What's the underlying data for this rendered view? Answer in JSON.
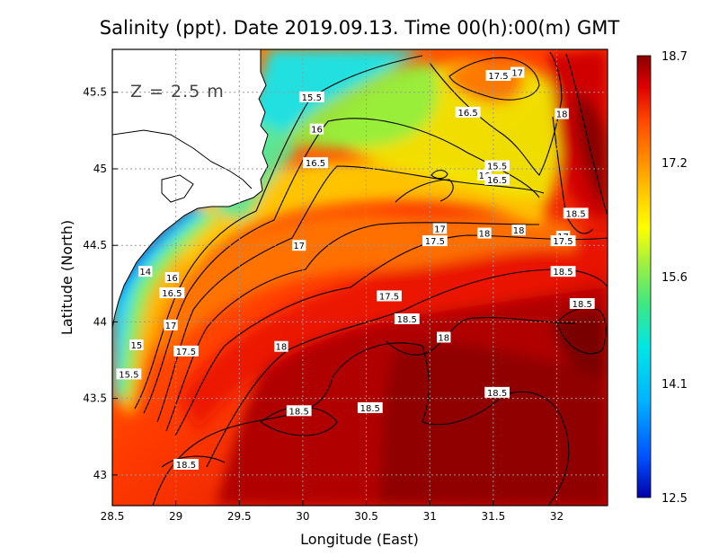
{
  "figure": {
    "title": "Salinity (ppt). Date 2019.09.13. Time 00(h):00(m) GMT",
    "depth_annotation": "Z = 2.5 m"
  },
  "chart_data": {
    "type": "heatmap",
    "variable": "Salinity (ppt)",
    "xlabel": "Longitude (East)",
    "ylabel": "Latitude (North)",
    "xlim": [
      28.5,
      32.4
    ],
    "ylim": [
      42.8,
      45.78
    ],
    "x_ticks": [
      "28.5",
      "29",
      "29.5",
      "30",
      "30.5",
      "31",
      "31.5",
      "32"
    ],
    "y_ticks": [
      "43",
      "43.5",
      "44",
      "44.5",
      "45",
      "45.5"
    ],
    "grid": true,
    "colorbar": {
      "min": 12.5,
      "max": 18.7,
      "tick_values": [
        12.5,
        14.1,
        15.6,
        17.2,
        18.7
      ],
      "tick_labels": [
        "12.5",
        "14.1",
        "15.6",
        "17.2",
        "18.7"
      ],
      "colors": [
        "#0000aa",
        "#0050ff",
        "#00b4ff",
        "#00e6e6",
        "#40e880",
        "#a0f040",
        "#ffff00",
        "#ffd000",
        "#ff9000",
        "#ff4a00",
        "#e00000",
        "#8a0000"
      ]
    },
    "contour_labels": [
      {
        "text": "17.5",
        "lon": 31.54,
        "lat": 45.61
      },
      {
        "text": "17",
        "lon": 31.69,
        "lat": 45.63
      },
      {
        "text": "15.5",
        "lon": 30.07,
        "lat": 45.47
      },
      {
        "text": "16.5",
        "lon": 31.3,
        "lat": 45.37
      },
      {
        "text": "18",
        "lon": 32.04,
        "lat": 45.36
      },
      {
        "text": "16",
        "lon": 30.11,
        "lat": 45.26
      },
      {
        "text": "16.5",
        "lon": 30.1,
        "lat": 45.04
      },
      {
        "text": "15.5",
        "lon": 31.53,
        "lat": 45.02
      },
      {
        "text": "16",
        "lon": 31.43,
        "lat": 44.96
      },
      {
        "text": "16.5",
        "lon": 31.53,
        "lat": 44.93
      },
      {
        "text": "18.5",
        "lon": 32.15,
        "lat": 44.71
      },
      {
        "text": "17",
        "lon": 31.08,
        "lat": 44.61
      },
      {
        "text": "18",
        "lon": 31.43,
        "lat": 44.58
      },
      {
        "text": "18",
        "lon": 31.7,
        "lat": 44.6
      },
      {
        "text": "17",
        "lon": 32.05,
        "lat": 44.56
      },
      {
        "text": "17.5",
        "lon": 31.04,
        "lat": 44.53
      },
      {
        "text": "17.5",
        "lon": 32.05,
        "lat": 44.53
      },
      {
        "text": "17",
        "lon": 29.97,
        "lat": 44.5
      },
      {
        "text": "14",
        "lon": 28.76,
        "lat": 44.33
      },
      {
        "text": "16",
        "lon": 28.97,
        "lat": 44.29
      },
      {
        "text": "18.5",
        "lon": 32.05,
        "lat": 44.33
      },
      {
        "text": "16.5",
        "lon": 28.97,
        "lat": 44.19
      },
      {
        "text": "17.5",
        "lon": 30.68,
        "lat": 44.17
      },
      {
        "text": "18.5",
        "lon": 32.2,
        "lat": 44.12
      },
      {
        "text": "18.5",
        "lon": 30.82,
        "lat": 44.02
      },
      {
        "text": "17",
        "lon": 28.96,
        "lat": 43.98
      },
      {
        "text": "18",
        "lon": 31.11,
        "lat": 43.9
      },
      {
        "text": "15",
        "lon": 28.69,
        "lat": 43.85
      },
      {
        "text": "18",
        "lon": 29.83,
        "lat": 43.84
      },
      {
        "text": "17.5",
        "lon": 29.08,
        "lat": 43.81
      },
      {
        "text": "15.5",
        "lon": 28.63,
        "lat": 43.66
      },
      {
        "text": "18.5",
        "lon": 31.53,
        "lat": 43.54
      },
      {
        "text": "18.5",
        "lon": 30.53,
        "lat": 43.44
      },
      {
        "text": "18.5",
        "lon": 29.97,
        "lat": 43.42
      },
      {
        "text": "18.5",
        "lon": 29.08,
        "lat": 43.07
      }
    ]
  }
}
